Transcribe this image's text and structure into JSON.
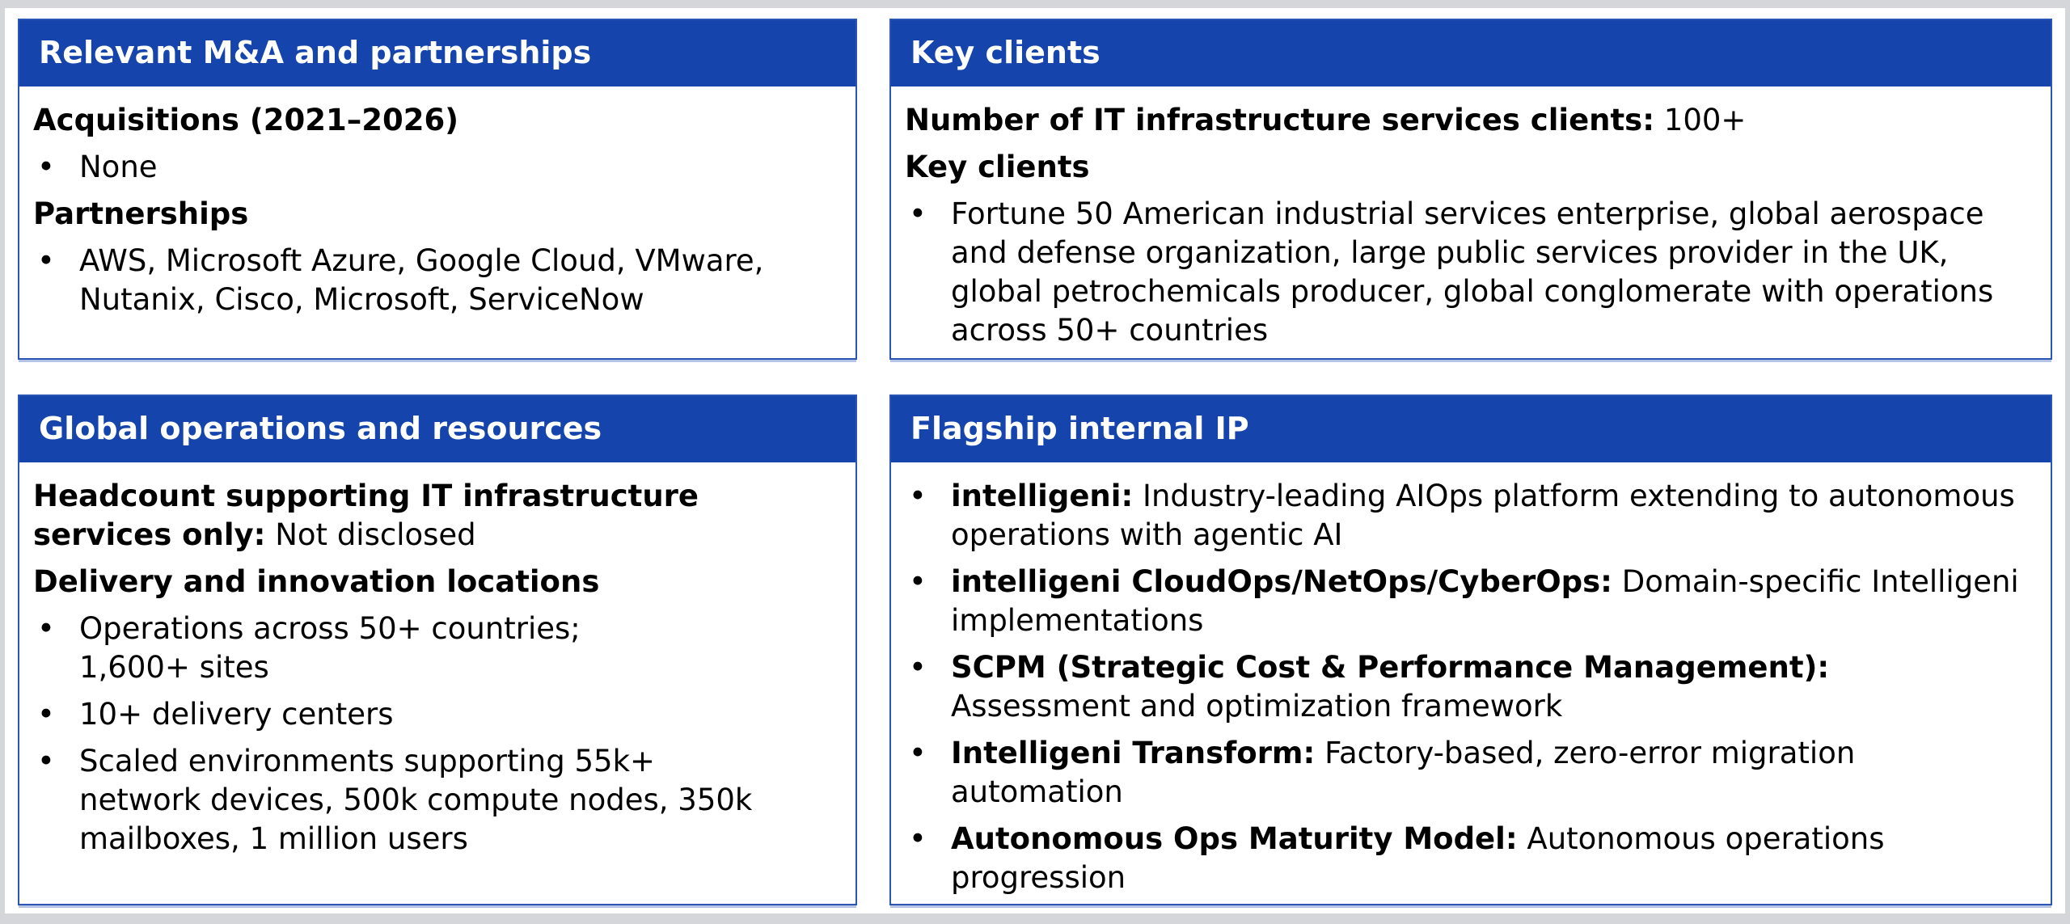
{
  "colors": {
    "accent": "#1444ac",
    "card_border": "#2a55b4",
    "frame": "#d4d6da",
    "header_text": "#ffffff",
    "body_text": "#000000",
    "background": "#ffffff"
  },
  "bullet_glyph": "•",
  "cards": {
    "ma": {
      "title": "Relevant M&A and partnerships",
      "acquisitions_heading": "Acquisitions (2021–2026)",
      "acquisitions_items": [
        "None"
      ],
      "partnerships_heading": "Partnerships",
      "partnerships_items": [
        "AWS, Microsoft Azure, Google Cloud, VMware, Nutanix, Cisco, Microsoft, ServiceNow"
      ]
    },
    "key_clients": {
      "title": "Key clients",
      "count_label": "Number of IT infrastructure services clients:",
      "count_value": "100+",
      "clients_heading": "Key clients",
      "clients_items": [
        "Fortune 50 American industrial services enterprise, global aerospace and defense organization, large public services provider in the UK, global petrochemicals producer, global conglomerate with operations across 50+ countries"
      ]
    },
    "global_ops": {
      "title": "Global operations and resources",
      "headcount_label": "Headcount supporting IT infrastructure services only:",
      "headcount_value": "Not disclosed",
      "locations_heading": "Delivery and innovation locations",
      "locations_items": [
        "Operations across 50+ countries;\n1,600+ sites",
        "10+ delivery centers",
        "Scaled environments supporting 55k+\nnetwork devices, 500k compute nodes, 350k mailboxes, 1 million users"
      ]
    },
    "flagship_ip": {
      "title": "Flagship internal IP",
      "items": [
        {
          "lead": "intelligeni:",
          "text": "Industry-leading AIOps platform extending to autonomous operations with agentic AI"
        },
        {
          "lead": "intelligeni CloudOps/NetOps/CyberOps:",
          "text": "Domain-specific Intelligeni implementations"
        },
        {
          "lead": "SCPM (Strategic Cost & Performance Management):",
          "text": "\nAssessment and optimization framework"
        },
        {
          "lead": "Intelligeni Transform:",
          "text": "Factory-based, zero-error migration automation"
        },
        {
          "lead": "Autonomous Ops Maturity Model:",
          "text": "Autonomous operations progression"
        }
      ]
    }
  }
}
